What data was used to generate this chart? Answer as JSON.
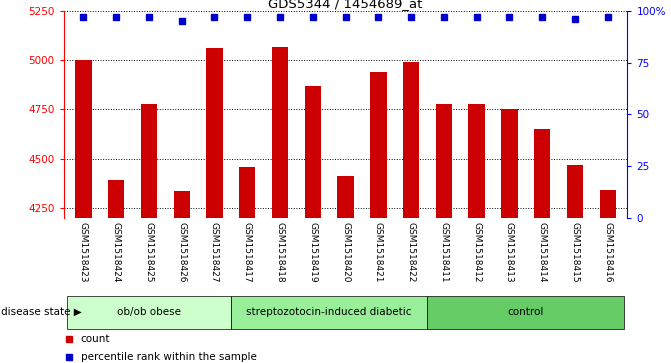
{
  "title": "GDS5344 / 1454689_at",
  "samples": [
    "GSM1518423",
    "GSM1518424",
    "GSM1518425",
    "GSM1518426",
    "GSM1518427",
    "GSM1518417",
    "GSM1518418",
    "GSM1518419",
    "GSM1518420",
    "GSM1518421",
    "GSM1518422",
    "GSM1518411",
    "GSM1518412",
    "GSM1518413",
    "GSM1518414",
    "GSM1518415",
    "GSM1518416"
  ],
  "counts": [
    5000,
    4390,
    4780,
    4335,
    5060,
    4460,
    5065,
    4870,
    4410,
    4940,
    4990,
    4780,
    4780,
    4750,
    4650,
    4470,
    4340
  ],
  "percentiles": [
    97,
    97,
    97,
    95,
    97,
    97,
    97,
    97,
    97,
    97,
    97,
    97,
    97,
    97,
    97,
    96,
    97
  ],
  "bar_color": "#cc0000",
  "dot_color": "#0000cc",
  "ylim_left": [
    4200,
    5250
  ],
  "ylim_right": [
    0,
    100
  ],
  "yticks_left": [
    4250,
    4500,
    4750,
    5000,
    5250
  ],
  "yticks_right": [
    0,
    25,
    50,
    75,
    100
  ],
  "ytick_labels_right": [
    "0",
    "25",
    "50",
    "75",
    "100%"
  ],
  "groups": [
    {
      "label": "ob/ob obese",
      "start": 0,
      "end": 5,
      "color": "#ccffcc"
    },
    {
      "label": "streptozotocin-induced diabetic",
      "start": 5,
      "end": 11,
      "color": "#99ee99"
    },
    {
      "label": "control",
      "start": 11,
      "end": 17,
      "color": "#66cc66"
    }
  ],
  "disease_state_label": "disease state",
  "legend_count_label": "count",
  "legend_percentile_label": "percentile rank within the sample",
  "sample_bg_color": "#d8d8d8",
  "plot_bg_color": "#ffffff"
}
